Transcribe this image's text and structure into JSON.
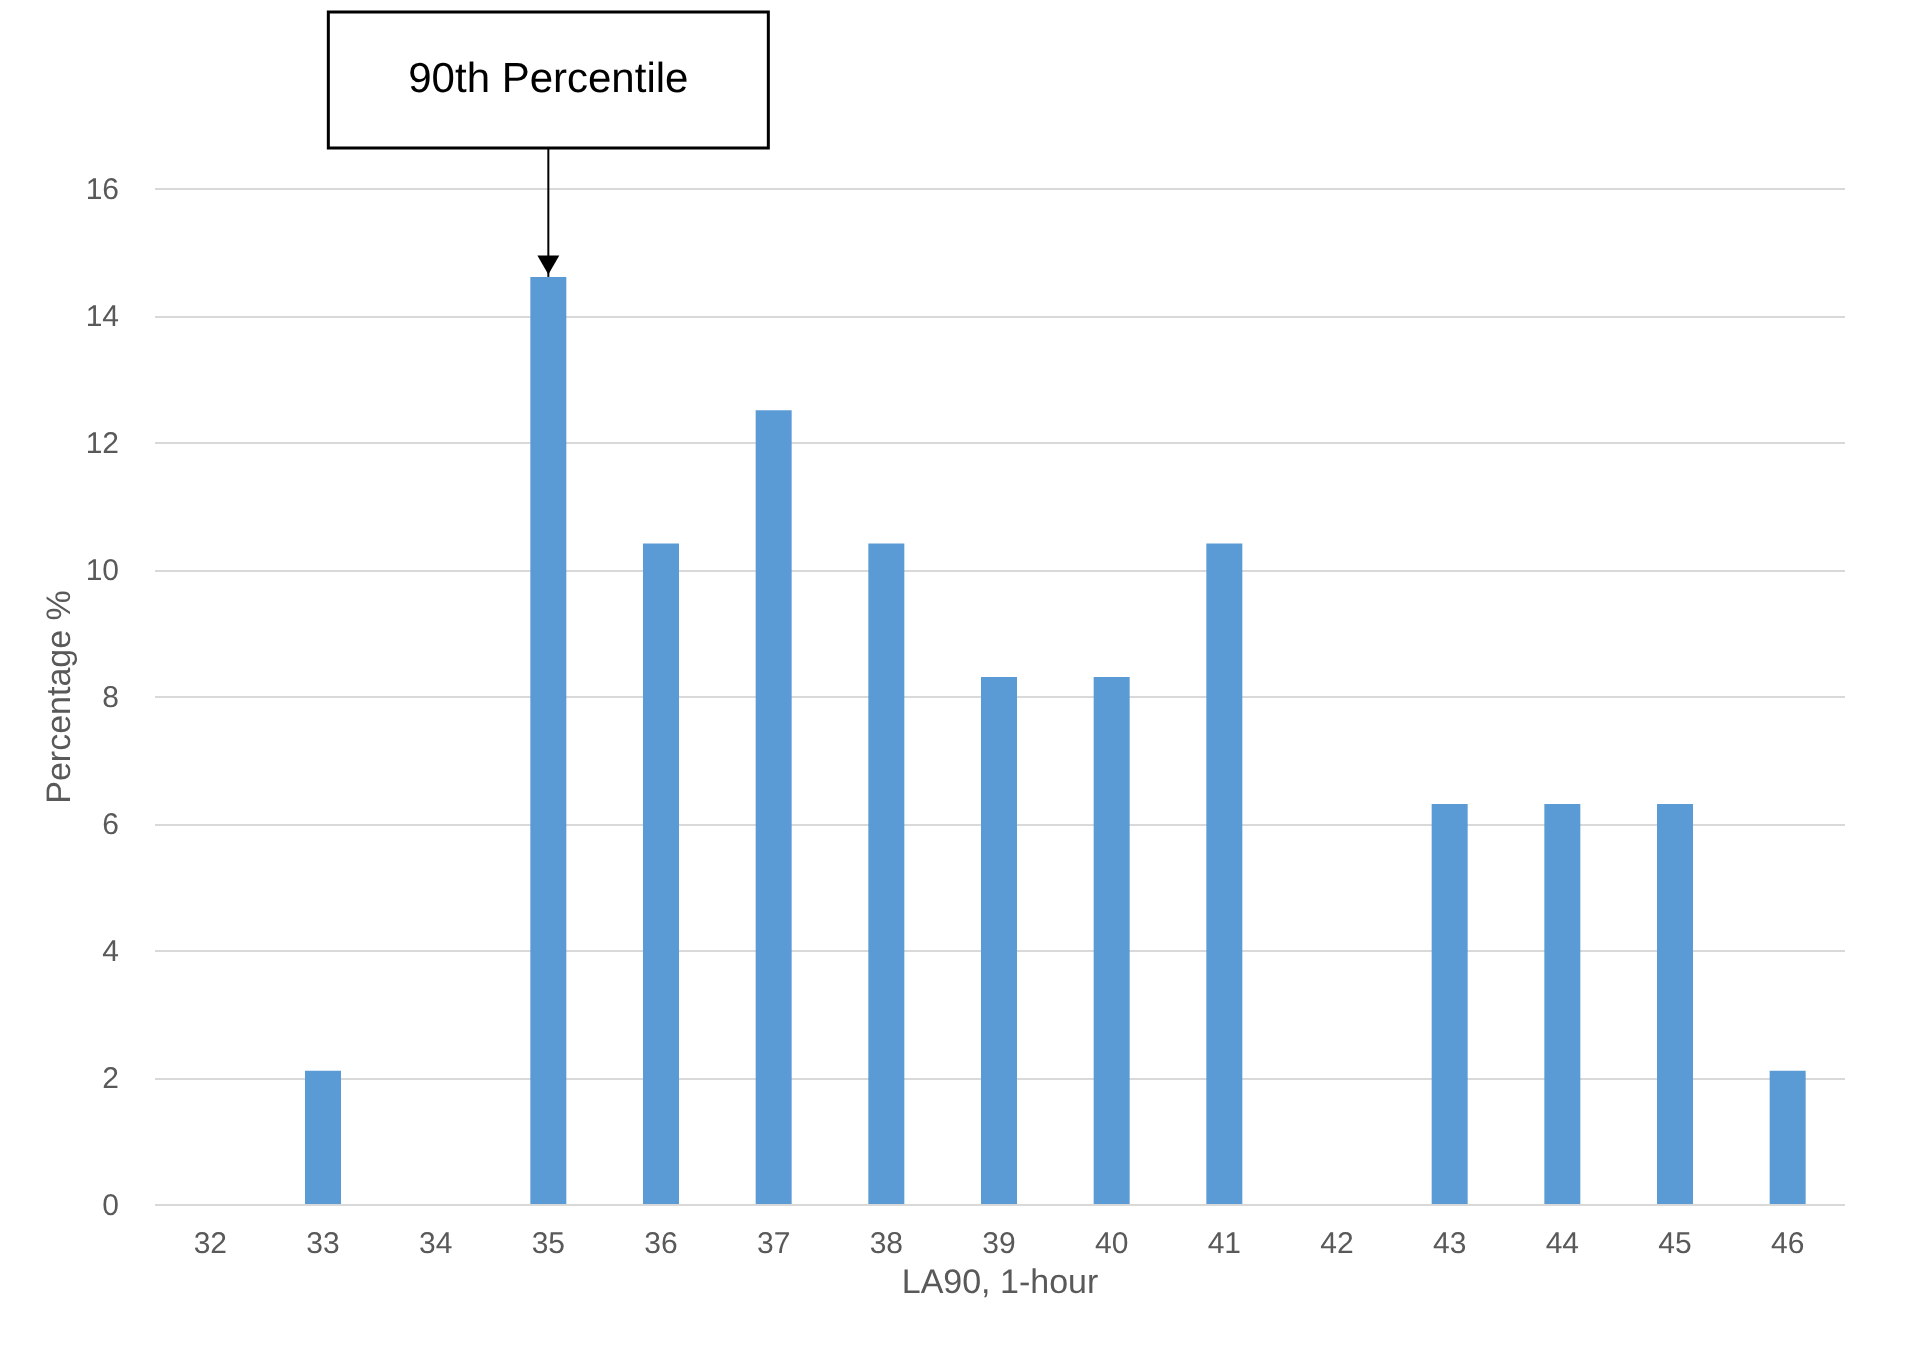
{
  "chart_data": {
    "type": "bar",
    "categories": [
      "32",
      "33",
      "34",
      "35",
      "36",
      "37",
      "38",
      "39",
      "40",
      "41",
      "42",
      "43",
      "44",
      "45",
      "46"
    ],
    "values": [
      0,
      2.1,
      0,
      14.6,
      10.4,
      12.5,
      10.4,
      8.3,
      8.3,
      10.4,
      0,
      6.3,
      6.3,
      6.3,
      2.1
    ],
    "color": "#5b9bd5",
    "xlabel": "LA90, 1-hour",
    "ylabel": "Percentage %",
    "ylim": [
      0,
      16
    ],
    "yticks": [
      0,
      2,
      4,
      6,
      8,
      10,
      12,
      14,
      16
    ],
    "grid": "y",
    "annotations": [
      {
        "text": "90th Percentile",
        "x": "35",
        "y": 14.6
      }
    ]
  }
}
